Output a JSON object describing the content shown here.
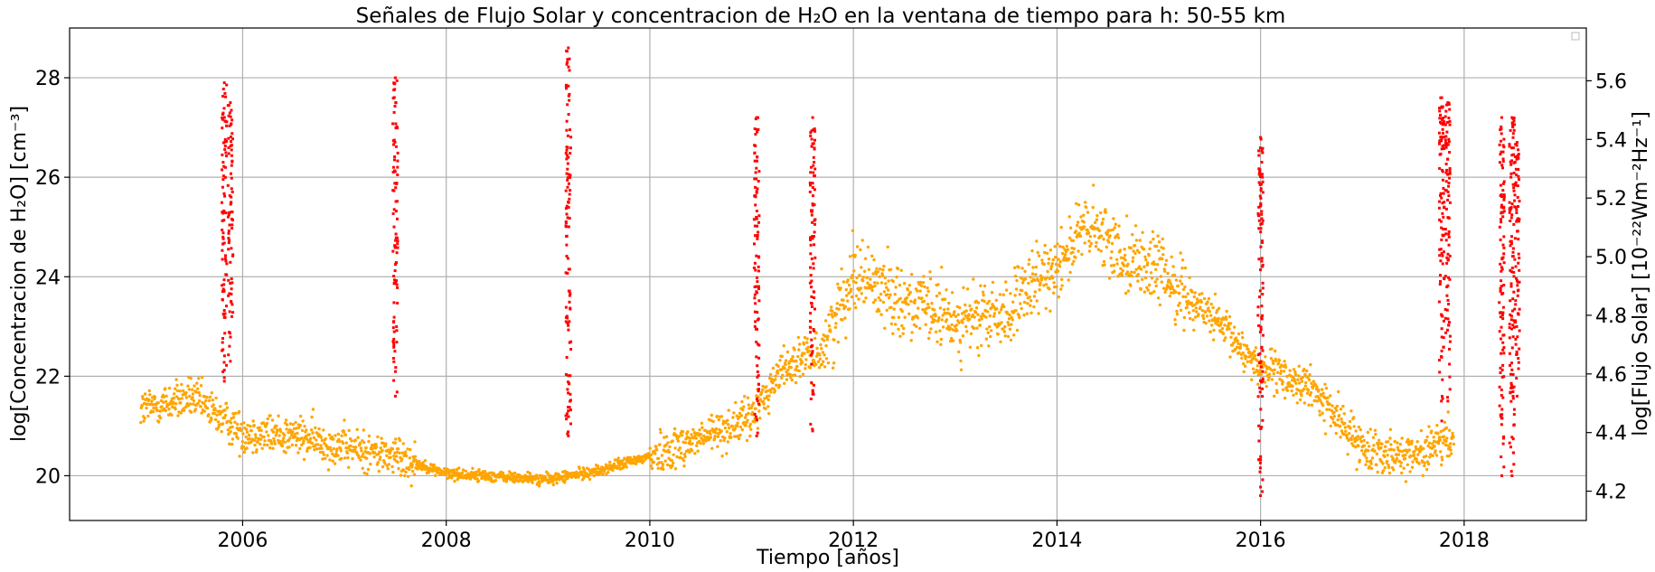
{
  "chart_data": {
    "type": "scatter",
    "title": "Señales de Flujo Solar y concentracion de H₂O en la ventana de tiempo para h: 50-55 km",
    "xlabel": "Tiempo [años]",
    "ylabel_left": "log[Concentracion de H₂O] [cm⁻³]",
    "ylabel_right": "log[Flujo Solar] [10⁻²²Wm⁻²Hz⁻¹]",
    "xlim": [
      2004.3,
      2019.2
    ],
    "ylim_left": [
      19.1,
      29.0
    ],
    "ylim_right": [
      4.1,
      5.78
    ],
    "x_ticks": [
      2006,
      2008,
      2010,
      2012,
      2014,
      2016,
      2018
    ],
    "x_tick_labels": [
      "2006",
      "2008",
      "2010",
      "2012",
      "2014",
      "2016",
      "2018"
    ],
    "y_left_ticks": [
      20,
      22,
      24,
      26,
      28
    ],
    "y_left_tick_labels": [
      "20",
      "22",
      "24",
      "26",
      "28"
    ],
    "y_right_ticks": [
      4.2,
      4.4,
      4.6,
      4.8,
      5.0,
      5.2,
      5.4,
      5.6
    ],
    "y_right_tick_labels": [
      "4.2",
      "4.4",
      "4.6",
      "4.8",
      "5.0",
      "5.2",
      "5.4",
      "5.6"
    ],
    "grid": true,
    "legend": "top-right (empty)",
    "series": [
      {
        "axis": "right",
        "color": "#ffa500",
        "trend_x": [
          2005.0,
          2005.5,
          2006.0,
          2006.5,
          2007.0,
          2007.5,
          2008.0,
          2008.5,
          2009.0,
          2009.5,
          2010.0,
          2010.5,
          2011.0,
          2011.3,
          2011.7,
          2012.0,
          2012.5,
          2013.0,
          2013.5,
          2014.0,
          2014.3,
          2014.7,
          2015.0,
          2015.5,
          2016.0,
          2016.5,
          2017.0,
          2017.5,
          2017.9
        ],
        "trend_y": [
          4.48,
          4.52,
          4.4,
          4.39,
          4.35,
          4.32,
          4.26,
          4.25,
          4.24,
          4.27,
          4.32,
          4.38,
          4.45,
          4.62,
          4.68,
          4.95,
          4.85,
          4.78,
          4.8,
          4.98,
          5.1,
          5.0,
          4.95,
          4.8,
          4.62,
          4.55,
          4.35,
          4.32,
          4.38
        ]
      },
      {
        "axis": "left",
        "color": "#ff0000",
        "clusters": [
          {
            "x": 2005.82,
            "ymin": 21.9,
            "ymax": 27.9
          },
          {
            "x": 2005.88,
            "ymin": 22.3,
            "ymax": 27.5
          },
          {
            "x": 2007.5,
            "ymin": 21.6,
            "ymax": 28.0
          },
          {
            "x": 2009.2,
            "ymin": 20.8,
            "ymax": 28.6
          },
          {
            "x": 2011.05,
            "ymin": 20.8,
            "ymax": 27.2
          },
          {
            "x": 2011.6,
            "ymin": 20.9,
            "ymax": 27.2
          },
          {
            "x": 2016.0,
            "ymin": 19.6,
            "ymax": 26.8
          },
          {
            "x": 2017.78,
            "ymin": 21.1,
            "ymax": 27.6
          },
          {
            "x": 2017.84,
            "ymin": 21.5,
            "ymax": 27.5
          },
          {
            "x": 2018.37,
            "ymin": 20.0,
            "ymax": 27.2
          },
          {
            "x": 2018.47,
            "ymin": 20.0,
            "ymax": 27.2
          },
          {
            "x": 2018.52,
            "ymin": 21.6,
            "ymax": 26.7
          }
        ]
      }
    ]
  }
}
